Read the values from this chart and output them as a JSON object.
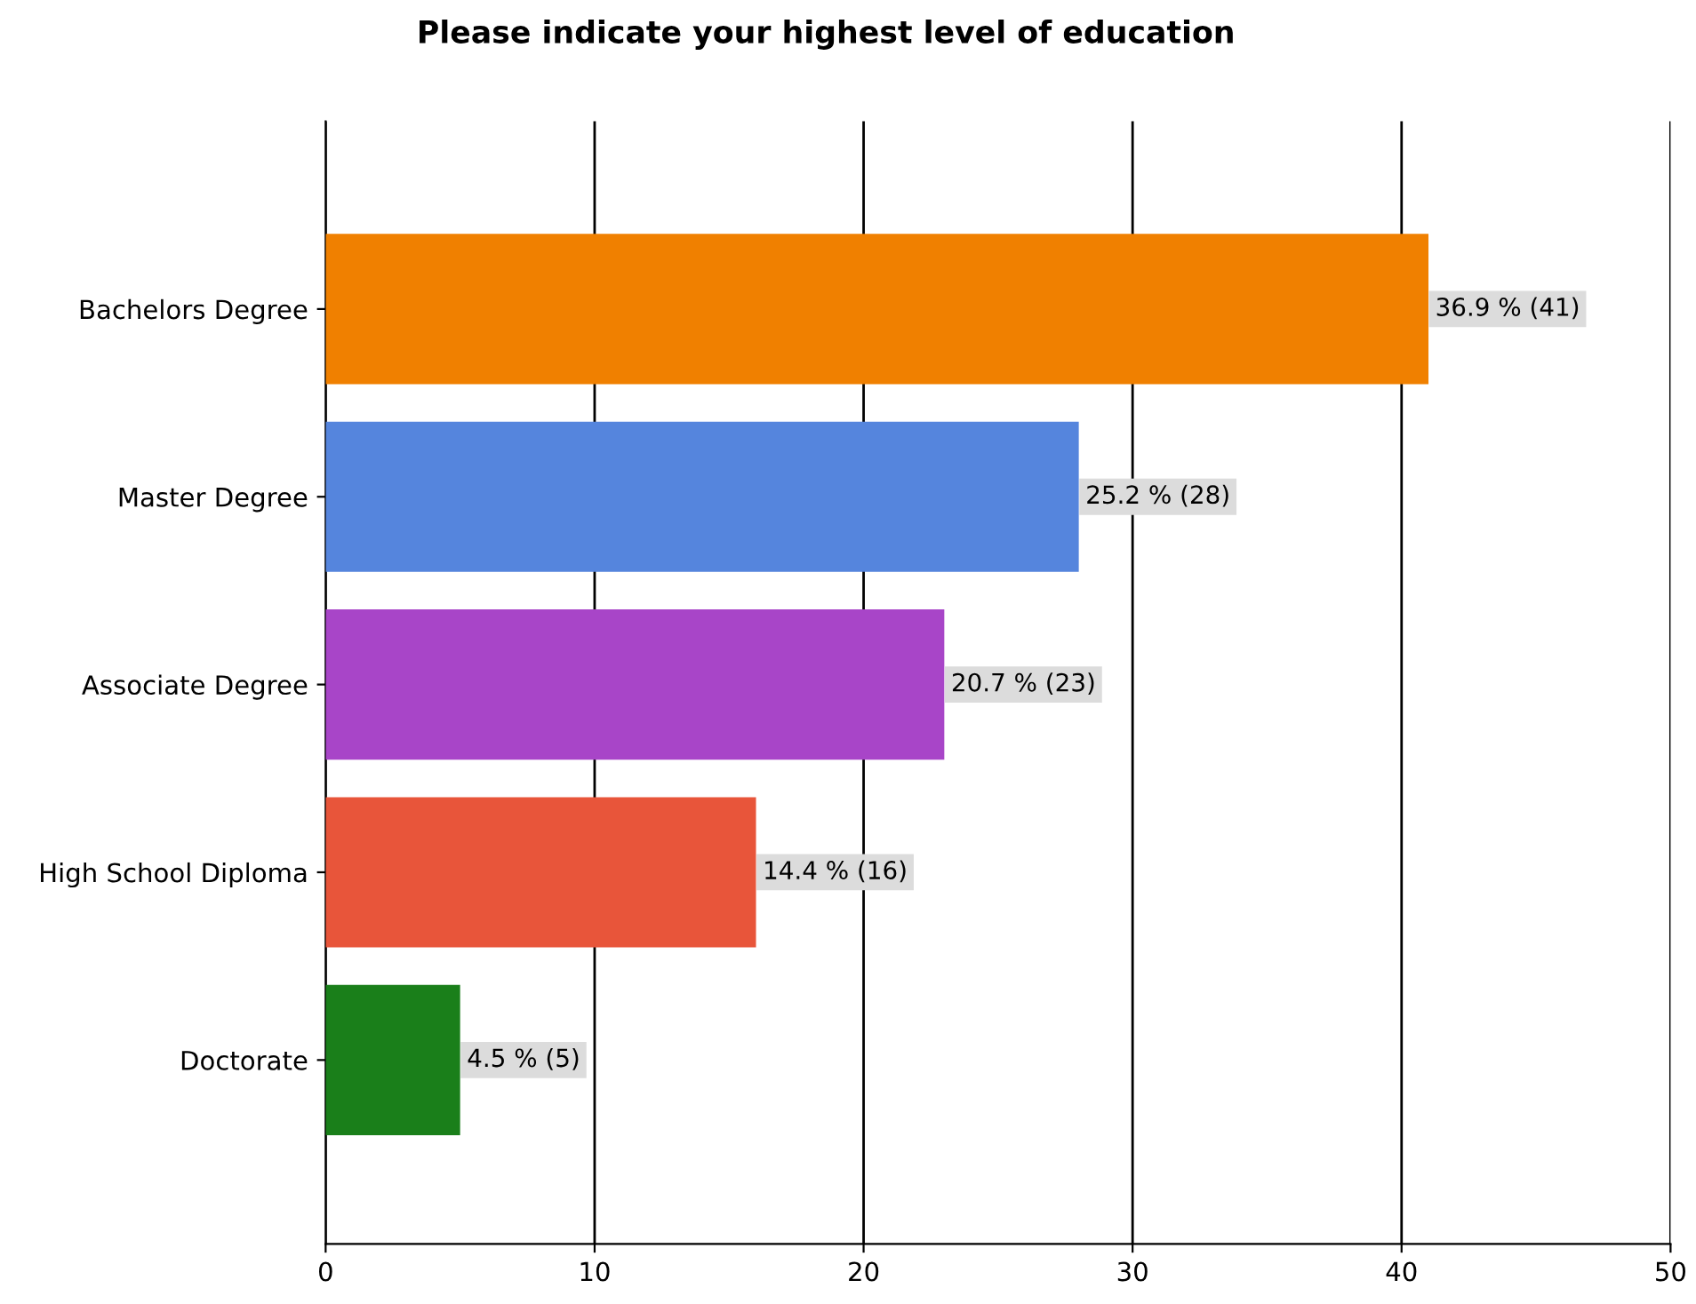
{
  "chart_data": {
    "type": "bar",
    "orientation": "horizontal",
    "title": "Please indicate your highest level of education",
    "categories": [
      "Bachelors Degree",
      "Master Degree",
      "Associate Degree",
      "High School Diploma",
      "Doctorate"
    ],
    "values": [
      41,
      28,
      23,
      16,
      5
    ],
    "colors": [
      "#f08000",
      "#5585dd",
      "#a845c8",
      "#e8553a",
      "#1a7f1a"
    ],
    "value_labels": [
      "36.9 % (41)",
      "25.2 % (28)",
      "20.7 % (23)",
      "14.4 % (16)",
      "4.5 % (5)"
    ],
    "xlim": [
      0,
      50
    ],
    "xticks": [
      0,
      10,
      20,
      30,
      40,
      50
    ],
    "grid": "x",
    "legend": false
  }
}
